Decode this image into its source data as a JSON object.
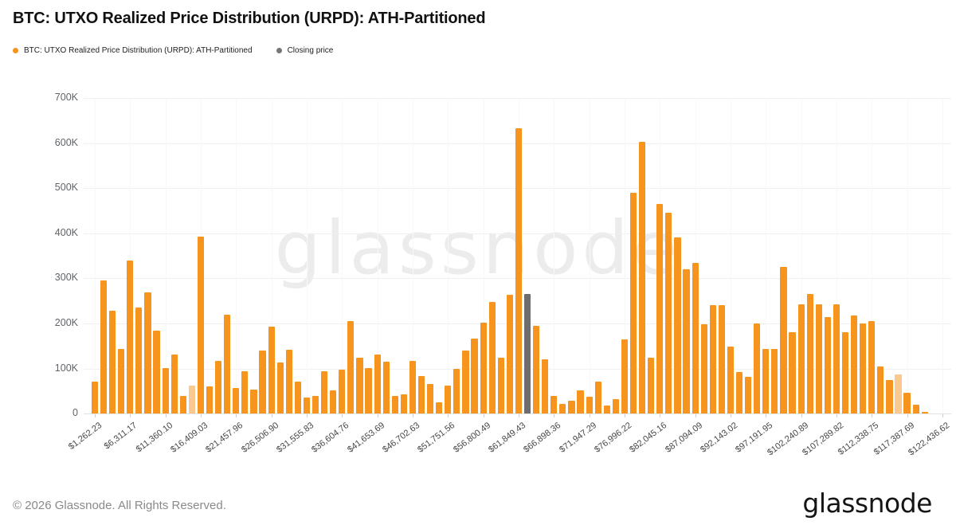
{
  "title": "BTC: UTXO Realized Price Distribution (URPD): ATH-Partitioned",
  "legend": [
    {
      "label": "BTC: UTXO Realized Price Distribution (URPD): ATH-Partitioned",
      "color": "#F7941D"
    },
    {
      "label": "Closing price",
      "color": "#757575"
    }
  ],
  "watermark": "glassnode",
  "footer": {
    "copyright": "© 2026 Glassnode. All Rights Reserved.",
    "brand": "glassnode"
  },
  "colors": {
    "bar": "#F7941D",
    "bar_light": "#F9C98F",
    "closing": "#6E6E6E",
    "grid": "#f0f0f0",
    "axis_text": "#5f6368"
  },
  "chart_data": {
    "type": "bar",
    "title": "BTC: UTXO Realized Price Distribution (URPD): ATH-Partitioned",
    "xlabel": "",
    "ylabel": "",
    "ylim": [
      0,
      700000
    ],
    "grid": true,
    "legend_position": "top-left",
    "y_tick_labels": [
      "0",
      "100K",
      "200K",
      "300K",
      "400K",
      "500K",
      "600K",
      "700K"
    ],
    "x_tick_labels": [
      "$1,262.23",
      "$6,311.17",
      "$11,360.10",
      "$16,409.03",
      "$21,457.96",
      "$26,506.90",
      "$31,555.83",
      "$36,604.76",
      "$41,653.69",
      "$46,702.63",
      "$51,751.56",
      "$56,800.49",
      "$61,849.43",
      "$66,898.36",
      "$71,947.29",
      "$76,996.22",
      "$82,045.16",
      "$87,094.09",
      "$92,143.02",
      "$97,191.95",
      "$102,240.89",
      "$107,289.82",
      "$112,338.75",
      "$117,387.69",
      "$122,436.62"
    ],
    "x_tick_every_n_bars": 4,
    "price_step_per_bar": 1262.23,
    "values": [
      71000,
      296000,
      228000,
      143000,
      339000,
      236000,
      269000,
      184000,
      101000,
      131000,
      40000,
      62000,
      392000,
      61000,
      118000,
      220000,
      58000,
      95000,
      53000,
      140000,
      193000,
      113000,
      142000,
      71000,
      36000,
      40000,
      94000,
      52000,
      98000,
      206000,
      124000,
      101000,
      132000,
      115000,
      39000,
      43000,
      117000,
      84000,
      66000,
      25000,
      62000,
      99000,
      140000,
      167000,
      202000,
      248000,
      124000,
      264000,
      633000,
      265000,
      194000,
      121000,
      40000,
      22000,
      28000,
      51000,
      37000,
      71000,
      18000,
      33000,
      164000,
      489000,
      602000,
      124000,
      465000,
      445000,
      390000,
      320000,
      334000,
      199000,
      240000,
      240000,
      149000,
      92000,
      82000,
      200000,
      143000,
      143000,
      326000,
      180000,
      243000,
      266000,
      243000,
      214000,
      243000,
      181000,
      218000,
      200000,
      205000,
      104000,
      74000,
      88000,
      46000,
      20000,
      4000,
      0,
      0
    ],
    "closing_price_bar_index": 49,
    "light_bar_indices": [
      11,
      91
    ],
    "series_name": "BTC: UTXO Realized Price Distribution (URPD): ATH-Partitioned",
    "closing_series_name": "Closing price"
  }
}
